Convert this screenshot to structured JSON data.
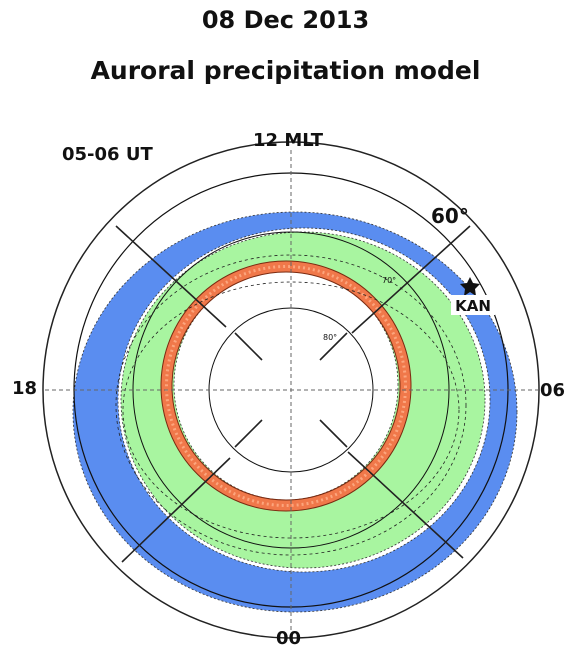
{
  "header": {
    "date": "08 Dec 2013",
    "subtitle": "Auroral precipitation model"
  },
  "labels": {
    "time": "05-06 UT",
    "top": "12 MLT",
    "left": "18",
    "right": "06",
    "bottom": "00",
    "lat_outer": "60°",
    "lat_mid": "70°",
    "lat_inner": "80°"
  },
  "station": {
    "name": "KAN"
  },
  "colors": {
    "outer_band": "#5a8df0",
    "middle_band": "#a8f5a0",
    "inner_ring": "#f0784a"
  }
}
